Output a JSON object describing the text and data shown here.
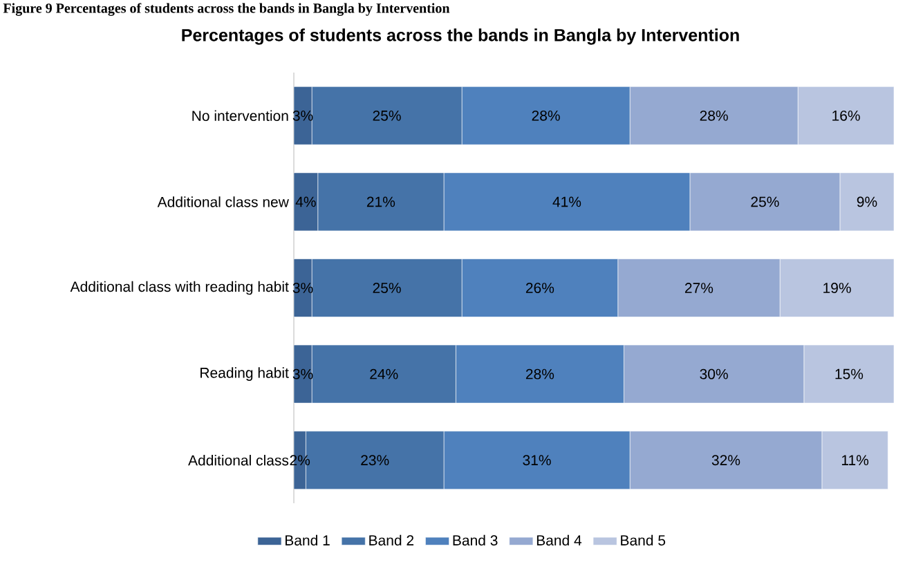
{
  "chart_data": {
    "type": "bar",
    "orientation": "horizontal",
    "stacked": true,
    "legend": "bottom",
    "title": "Percentages of students across the bands in Bangla by Intervention",
    "annotations": [
      "Figure 9 Percentages of students across the bands in Bangla by Intervention"
    ],
    "categories": [
      "No intervention",
      "Additional class new",
      "Additional class with reading habit",
      "Reading habit",
      "Additional class"
    ],
    "series": [
      {
        "name": "Band 1",
        "color": "#3c6496",
        "values": [
          3,
          4,
          3,
          3,
          2
        ],
        "value_labels": [
          "3%",
          "4%",
          "3%",
          "3%",
          "2%"
        ]
      },
      {
        "name": "Band 2",
        "color": "#4573a8",
        "values": [
          25,
          21,
          25,
          24,
          23
        ],
        "value_labels": [
          "25%",
          "21%",
          "25%",
          "24%",
          "23%"
        ]
      },
      {
        "name": "Band 3",
        "color": "#4f81bd",
        "values": [
          28,
          41,
          26,
          28,
          31
        ],
        "value_labels": [
          "28%",
          "41%",
          "26%",
          "28%",
          "31%"
        ]
      },
      {
        "name": "Band 4",
        "color": "#95a9d1",
        "values": [
          28,
          25,
          27,
          30,
          32
        ],
        "value_labels": [
          "28%",
          "25%",
          "27%",
          "30%",
          "32%"
        ]
      },
      {
        "name": "Band 5",
        "color": "#b9c5e0",
        "values": [
          16,
          9,
          19,
          15,
          11
        ],
        "value_labels": [
          "16%",
          "9%",
          "19%",
          "15%",
          "11%"
        ]
      }
    ]
  }
}
